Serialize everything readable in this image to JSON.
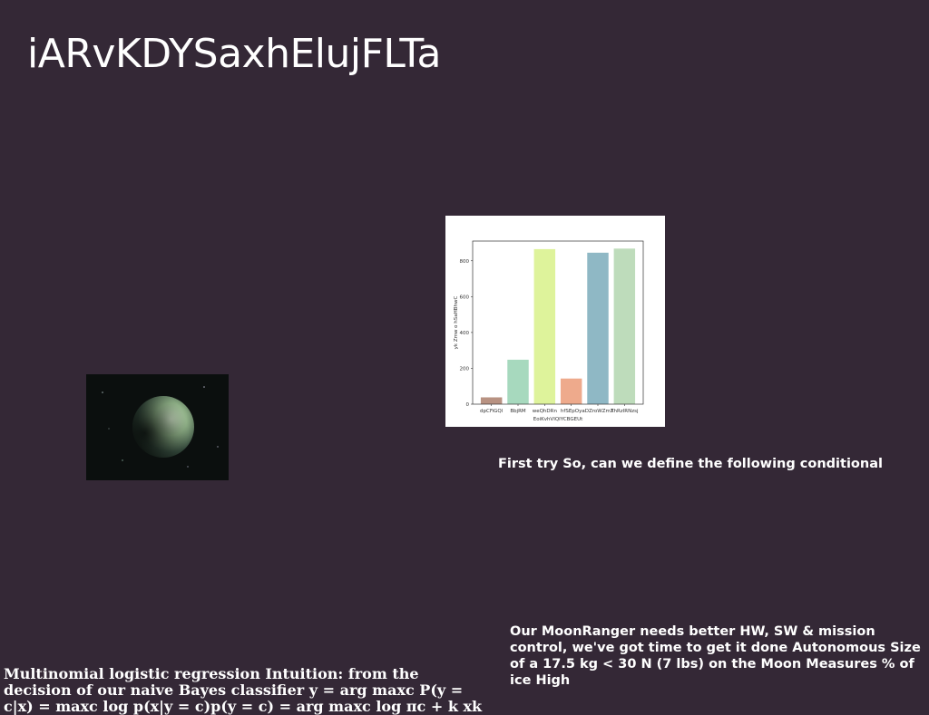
{
  "title": "iARvKDYSaxhElujFLTa",
  "image": {
    "icon": "planet-image"
  },
  "chart_data": {
    "type": "bar",
    "categories": [
      "dpCFiGQl",
      "BbjRM",
      "weQhDRn",
      "hfSEpOy",
      "aDZroWZmX",
      "ThRzIRNzsj"
    ],
    "values": [
      38,
      248,
      865,
      143,
      845,
      868
    ],
    "colors": [
      "#b89282",
      "#a7d9be",
      "#def39b",
      "#eeaa8c",
      "#8fb8c5",
      "#bedcbb"
    ],
    "xlabel": "EoiKvhVIQIYCBGEUt",
    "ylabel": "yk Zmw o hSaHBhwC",
    "yticks": [
      0,
      200,
      400,
      600,
      800
    ],
    "ylim": [
      0,
      910
    ]
  },
  "captions": {
    "first": "First try So, can we define the following conditional",
    "moonranger": "Our MoonRanger needs better HW, SW & mission control, we've got time to get it done Autonomous Size of a 17.5 kg < 30 N (7 lbs) on the Moon Measures % of ice High",
    "bayes": "Multinomial logistic regression Intuition: from the decision of our naive Bayes classifier y  = arg maxc P(y = c|x) = maxc log p(x|y = c)p(y = c) = arg maxc log πc +  k xk"
  }
}
